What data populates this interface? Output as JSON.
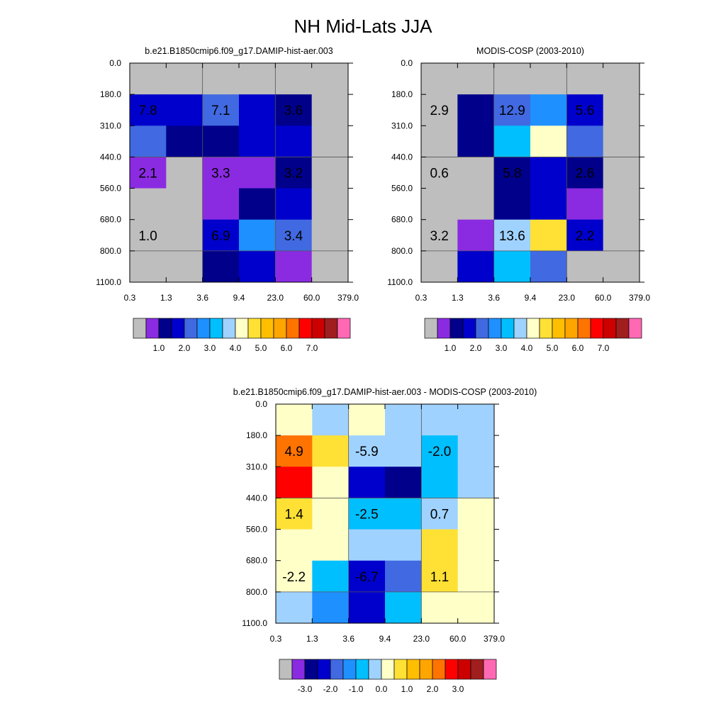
{
  "figure": {
    "title": "NH Mid-Lats JJA"
  },
  "palette": {
    "colors": [
      "#bebebe",
      "#8a2be2",
      "#00008b",
      "#0000cd",
      "#4169e1",
      "#1e90ff",
      "#00bfff",
      "#a0d2ff",
      "#ffffc8",
      "#ffe135",
      "#ffbf00",
      "#ffa500",
      "#ff7300",
      "#ff0000",
      "#cd0000",
      "#a01e1e",
      "#ff69b4"
    ]
  },
  "chart_data": [
    {
      "type": "heatmap",
      "title": "b.e21.B1850cmip6.f09_g17.DAMIP-hist-aer.003",
      "x_ticks": [
        "0.3",
        "1.3",
        "3.6",
        "9.4",
        "23.0",
        "60.0",
        "379.0"
      ],
      "y_ticks": [
        "0.0",
        "180.0",
        "310.0",
        "440.0",
        "560.0",
        "680.0",
        "800.0",
        "1100.0"
      ],
      "cells": [
        [
          0,
          0,
          0,
          0,
          0,
          0
        ],
        [
          3,
          3,
          4,
          3,
          2,
          0
        ],
        [
          4,
          2,
          2,
          3,
          3,
          0
        ],
        [
          1,
          0,
          1,
          1,
          2,
          0
        ],
        [
          0,
          0,
          1,
          2,
          3,
          0
        ],
        [
          0,
          0,
          3,
          5,
          4,
          0
        ],
        [
          0,
          0,
          2,
          3,
          1,
          0
        ]
      ],
      "labels": [
        {
          "text": "7.8",
          "col": 0.5,
          "row": 1.5
        },
        {
          "text": "7.1",
          "col": 2.5,
          "row": 1.5
        },
        {
          "text": "3.6",
          "col": 4.5,
          "row": 1.5
        },
        {
          "text": "2.1",
          "col": 0.5,
          "row": 3.5
        },
        {
          "text": "3.3",
          "col": 2.5,
          "row": 3.5
        },
        {
          "text": "3.2",
          "col": 4.5,
          "row": 3.5
        },
        {
          "text": "1.0",
          "col": 0.5,
          "row": 5.5
        },
        {
          "text": "6.9",
          "col": 2.5,
          "row": 5.5
        },
        {
          "text": "3.4",
          "col": 4.5,
          "row": 5.5
        }
      ],
      "colorbar_labels": [
        "1.0",
        "2.0",
        "3.0",
        "4.0",
        "5.0",
        "6.0",
        "7.0"
      ]
    },
    {
      "type": "heatmap",
      "title": "MODIS-COSP (2003-2010)",
      "x_ticks": [
        "0.3",
        "1.3",
        "3.6",
        "9.4",
        "23.0",
        "60.0",
        "379.0"
      ],
      "y_ticks": [
        "0.0",
        "180.0",
        "310.0",
        "440.0",
        "560.0",
        "680.0",
        "800.0",
        "1100.0"
      ],
      "cells": [
        [
          0,
          0,
          0,
          0,
          0,
          0
        ],
        [
          0,
          2,
          4,
          5,
          3,
          0
        ],
        [
          0,
          2,
          6,
          8,
          4,
          0
        ],
        [
          0,
          0,
          2,
          3,
          2,
          0
        ],
        [
          0,
          0,
          2,
          3,
          1,
          0
        ],
        [
          0,
          1,
          7,
          9,
          3,
          0
        ],
        [
          0,
          3,
          6,
          4,
          0,
          0
        ]
      ],
      "labels": [
        {
          "text": "2.9",
          "col": 0.5,
          "row": 1.5
        },
        {
          "text": "12.9",
          "col": 2.5,
          "row": 1.5
        },
        {
          "text": "5.6",
          "col": 4.5,
          "row": 1.5
        },
        {
          "text": "0.6",
          "col": 0.5,
          "row": 3.5
        },
        {
          "text": "5.8",
          "col": 2.5,
          "row": 3.5
        },
        {
          "text": "2.6",
          "col": 4.5,
          "row": 3.5
        },
        {
          "text": "3.2",
          "col": 0.5,
          "row": 5.5
        },
        {
          "text": "13.6",
          "col": 2.5,
          "row": 5.5
        },
        {
          "text": "2.2",
          "col": 4.5,
          "row": 5.5
        }
      ],
      "colorbar_labels": [
        "1.0",
        "2.0",
        "3.0",
        "4.0",
        "5.0",
        "6.0",
        "7.0"
      ]
    },
    {
      "type": "heatmap",
      "title": "b.e21.B1850cmip6.f09_g17.DAMIP-hist-aer.003 - MODIS-COSP (2003-2010)",
      "x_ticks": [
        "0.3",
        "1.3",
        "3.6",
        "9.4",
        "23.0",
        "60.0",
        "379.0"
      ],
      "y_ticks": [
        "0.0",
        "180.0",
        "310.0",
        "440.0",
        "560.0",
        "680.0",
        "800.0",
        "1100.0"
      ],
      "cells": [
        [
          8,
          7,
          8,
          7,
          7,
          7
        ],
        [
          12,
          9,
          7,
          7,
          6,
          7
        ],
        [
          13,
          8,
          3,
          2,
          6,
          7
        ],
        [
          9,
          8,
          6,
          6,
          7,
          8
        ],
        [
          8,
          8,
          7,
          7,
          9,
          8
        ],
        [
          8,
          6,
          3,
          4,
          9,
          8
        ],
        [
          7,
          5,
          3,
          6,
          8,
          8
        ]
      ],
      "labels": [
        {
          "text": "4.9",
          "col": 0.5,
          "row": 1.5
        },
        {
          "text": "-5.9",
          "col": 2.5,
          "row": 1.5
        },
        {
          "text": "-2.0",
          "col": 4.5,
          "row": 1.5
        },
        {
          "text": "1.4",
          "col": 0.5,
          "row": 3.5
        },
        {
          "text": "-2.5",
          "col": 2.5,
          "row": 3.5
        },
        {
          "text": "0.7",
          "col": 4.5,
          "row": 3.5
        },
        {
          "text": "-2.2",
          "col": 0.5,
          "row": 5.5
        },
        {
          "text": "-6.7",
          "col": 2.5,
          "row": 5.5
        },
        {
          "text": "1.1",
          "col": 4.5,
          "row": 5.5
        }
      ],
      "colorbar_labels": [
        "-3.0",
        "-2.0",
        "-1.0",
        "0.0",
        "1.0",
        "2.0",
        "3.0"
      ]
    }
  ]
}
